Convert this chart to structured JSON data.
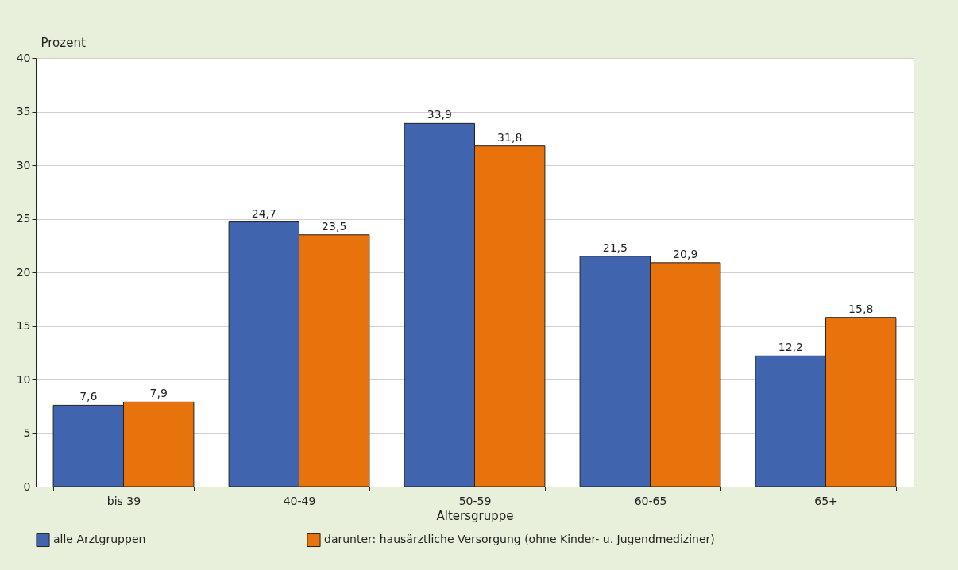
{
  "chart_data": {
    "type": "bar",
    "xlabel": "Altersgruppe",
    "ylabel": "Prozent",
    "categories": [
      "bis 39",
      "40-49",
      "50-59",
      "60-65",
      "65+"
    ],
    "series": [
      {
        "name": "alle Arztgruppen",
        "color": "#4065ae",
        "values": [
          7.6,
          24.7,
          33.9,
          21.5,
          12.2
        ],
        "value_labels": [
          "7,6",
          "24,7",
          "33,9",
          "21,5",
          "12,2"
        ]
      },
      {
        "name": "darunter: hausärztliche Versorgung (ohne Kinder- u. Jugendmediziner)",
        "color": "#e8720c",
        "values": [
          7.9,
          23.5,
          31.8,
          20.9,
          15.8
        ],
        "value_labels": [
          "7,9",
          "23,5",
          "31,8",
          "20,9",
          "15,8"
        ]
      }
    ],
    "ylim": [
      0,
      40
    ],
    "yticks": [
      0,
      5,
      10,
      15,
      20,
      25,
      30,
      35,
      40
    ],
    "grid": "y",
    "legend": "bottom"
  }
}
